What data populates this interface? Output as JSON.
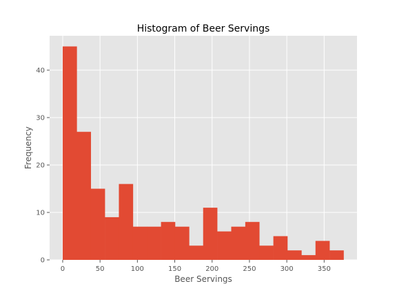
{
  "chart_data": {
    "type": "bar",
    "title": "Histogram of Beer Servings",
    "xlabel": "Beer Servings",
    "ylabel": "Frequency",
    "bin_edges": [
      0,
      18.8,
      37.6,
      56.4,
      75.2,
      94,
      112.8,
      131.6,
      150.4,
      169.2,
      188,
      206.8,
      225.6,
      244.4,
      263.2,
      282,
      300.8,
      319.6,
      338.4,
      357.2,
      376
    ],
    "values": [
      45,
      27,
      15,
      9,
      16,
      7,
      7,
      8,
      7,
      3,
      11,
      6,
      7,
      8,
      3,
      5,
      2,
      1,
      4,
      2
    ],
    "xlim": [
      -17.5,
      394
    ],
    "ylim": [
      0,
      47.25
    ],
    "xticks": [
      0,
      50,
      100,
      150,
      200,
      250,
      300,
      350
    ],
    "yticks": [
      0,
      10,
      20,
      30,
      40
    ],
    "bar_color": "#E24A33",
    "background_color": "#E5E5E5",
    "grid": true,
    "grid_color": "#FFFFFF",
    "legend": false
  }
}
